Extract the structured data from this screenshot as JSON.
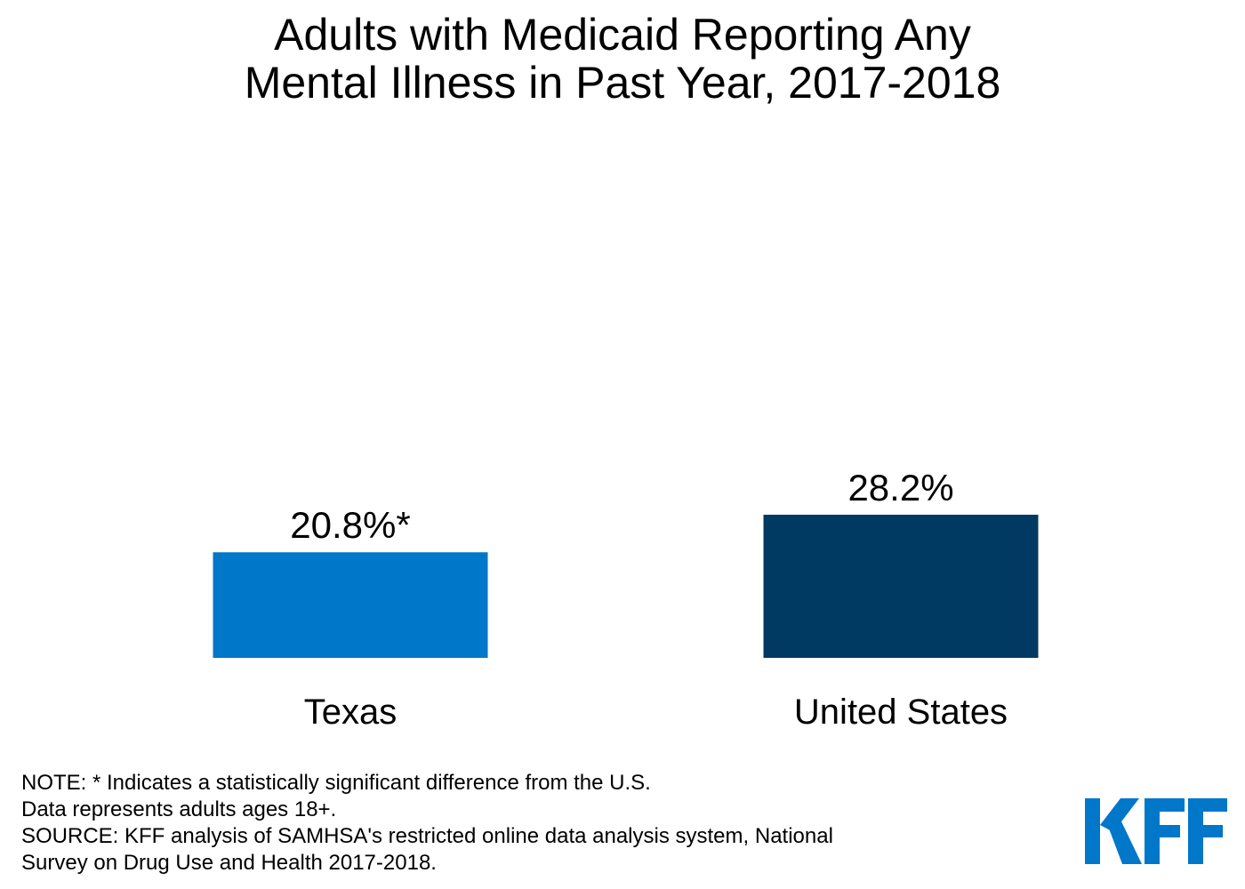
{
  "title_lines": [
    "Adults with Medicaid Reporting Any",
    "Mental Illness in Past Year, 2017-2018"
  ],
  "notes": [
    "NOTE: * Indicates a statistically significant difference from the U.S.",
    "Data represents adults ages 18+.",
    "SOURCE: KFF analysis of SAMHSA's restricted online data analysis system, National",
    "Survey on Drug Use and Health 2017-2018."
  ],
  "logo": {
    "text": "KFF",
    "color": "#0077C8"
  },
  "chart_data": {
    "type": "bar",
    "title": "Adults with Medicaid Reporting Any Mental Illness in Past Year, 2017-2018",
    "categories": [
      "Texas",
      "United States"
    ],
    "values": [
      20.8,
      28.2
    ],
    "data_labels": [
      "20.8%*",
      "28.2%"
    ],
    "colors": [
      "#0077C8",
      "#003A63"
    ],
    "xlabel": "",
    "ylabel": "",
    "ylim": [
      0,
      100
    ],
    "grid": false,
    "legend": "none",
    "axes_visible": false
  }
}
